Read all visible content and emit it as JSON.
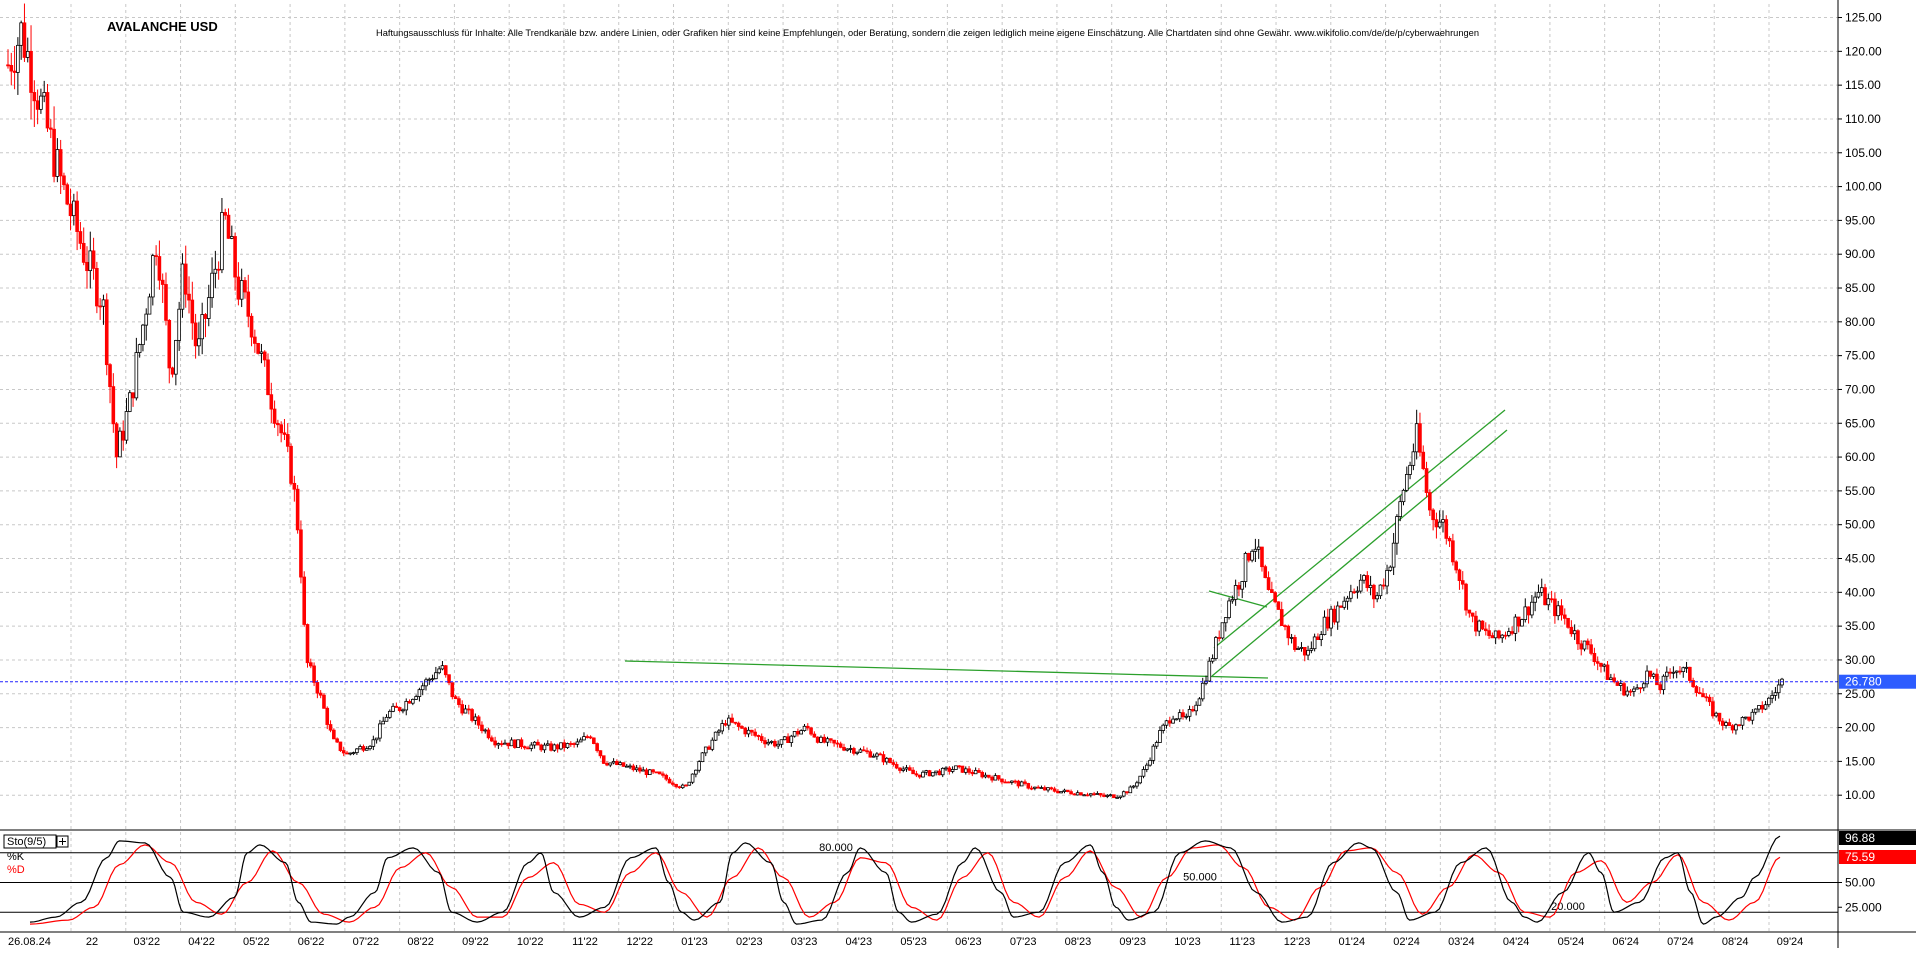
{
  "chart_title": "AVALANCHE USD",
  "disclaimer": "Haftungsausschluss für Inhalte: Alle Trendkanäle bzw. andere Linien, oder Grafiken hier sind keine Empfehlungen, oder Beratung, sondern die zeigen lediglich meine eigene Einschätzung. Alle Chartdaten sind ohne Gewähr. www.wikifolio.com/de/de/p/cyberwaehrungen",
  "date_label": "26.08.24",
  "colors": {
    "up": "#000000",
    "down": "#ff0000",
    "grid": "#c8c8c8",
    "trendline": "#2ca02c",
    "current_price_line": "#2222ff",
    "k_line": "#000000",
    "d_line": "#ff0000"
  },
  "chart_data": [
    {
      "type": "candlestick",
      "title": "AVALANCHE USD",
      "ylim": [
        5,
        127
      ],
      "y_ticks": [
        "10.00",
        "15.00",
        "20.00",
        "25.00",
        "30.00",
        "35.00",
        "40.00",
        "45.00",
        "50.00",
        "55.00",
        "60.00",
        "65.00",
        "70.00",
        "75.00",
        "80.00",
        "85.00",
        "90.00",
        "95.00",
        "100.00",
        "105.00",
        "110.00",
        "115.00",
        "120.00",
        "125.00"
      ],
      "x_ticks": [
        "22",
        "03'22",
        "04'22",
        "05'22",
        "06'22",
        "07'22",
        "08'22",
        "09'22",
        "10'22",
        "11'22",
        "12'22",
        "01'23",
        "02'23",
        "03'23",
        "04'23",
        "05'23",
        "06'23",
        "07'23",
        "08'23",
        "09'23",
        "10'23",
        "11'23",
        "12'23",
        "01'24",
        "02'24",
        "03'24",
        "04'24",
        "05'24",
        "06'24",
        "07'24",
        "08'24",
        "09'24"
      ],
      "grid": true,
      "current_price": 26.78,
      "current_price_label": "26.780",
      "price_path": [
        [
          0,
          118
        ],
        [
          1,
          123
        ],
        [
          4,
          100
        ],
        [
          6,
          88
        ],
        [
          7,
          83
        ],
        [
          8,
          60
        ],
        [
          9,
          68
        ],
        [
          10,
          80
        ],
        [
          11,
          93
        ],
        [
          12,
          72
        ],
        [
          13,
          88
        ],
        [
          14,
          75
        ],
        [
          16,
          95
        ],
        [
          17,
          85
        ],
        [
          18,
          80
        ],
        [
          19,
          72
        ],
        [
          20,
          65
        ],
        [
          21,
          57
        ],
        [
          21.5,
          48
        ],
        [
          22,
          30
        ],
        [
          23,
          25
        ],
        [
          24,
          18
        ],
        [
          25,
          16
        ],
        [
          26,
          17
        ],
        [
          27,
          18
        ],
        [
          28,
          22
        ],
        [
          29,
          23
        ],
        [
          30,
          25
        ],
        [
          31,
          27
        ],
        [
          32,
          29
        ],
        [
          33,
          24
        ],
        [
          34,
          22
        ],
        [
          36,
          18
        ],
        [
          38,
          17.5
        ],
        [
          40,
          17
        ],
        [
          42,
          17.5
        ],
        [
          43,
          19
        ],
        [
          44,
          15
        ],
        [
          46,
          14
        ],
        [
          48,
          13
        ],
        [
          49,
          12
        ],
        [
          50,
          11
        ],
        [
          51,
          15
        ],
        [
          52,
          18
        ],
        [
          53,
          21
        ],
        [
          54,
          20
        ],
        [
          55,
          19
        ],
        [
          56,
          18
        ],
        [
          57,
          17.5
        ],
        [
          58,
          19
        ],
        [
          59,
          20
        ],
        [
          60,
          18
        ],
        [
          62,
          17
        ],
        [
          64,
          16
        ],
        [
          66,
          14
        ],
        [
          67,
          13
        ],
        [
          69,
          13.5
        ],
        [
          70,
          14
        ],
        [
          72,
          13
        ],
        [
          74,
          12
        ],
        [
          76,
          11
        ],
        [
          78,
          10.5
        ],
        [
          80,
          10.2
        ],
        [
          81,
          9.8
        ],
        [
          82,
          10
        ],
        [
          83,
          11
        ],
        [
          84,
          14
        ],
        [
          85,
          19
        ],
        [
          86,
          22
        ],
        [
          87,
          21
        ],
        [
          88,
          25
        ],
        [
          89,
          31
        ],
        [
          90,
          38
        ],
        [
          91,
          42
        ],
        [
          92,
          48
        ],
        [
          93,
          40
        ],
        [
          94,
          36
        ],
        [
          95,
          32
        ],
        [
          96,
          31
        ],
        [
          97,
          35
        ],
        [
          98,
          37
        ],
        [
          99,
          40
        ],
        [
          100,
          42
        ],
        [
          101,
          39
        ],
        [
          102,
          44
        ],
        [
          103,
          55
        ],
        [
          104,
          63
        ],
        [
          104.5,
          58
        ],
        [
          105,
          52
        ],
        [
          106,
          50
        ],
        [
          107,
          44
        ],
        [
          108,
          36
        ],
        [
          109,
          34
        ],
        [
          110,
          33
        ],
        [
          111,
          35
        ],
        [
          112,
          37
        ],
        [
          113,
          40
        ],
        [
          114,
          38
        ],
        [
          115,
          36
        ],
        [
          116,
          33
        ],
        [
          117,
          31
        ],
        [
          118,
          28
        ],
        [
          119,
          26
        ],
        [
          120,
          25
        ],
        [
          121,
          28
        ],
        [
          122,
          26
        ],
        [
          123,
          29
        ],
        [
          124,
          28
        ],
        [
          125,
          25
        ],
        [
          126,
          22
        ],
        [
          127,
          20
        ],
        [
          128,
          21
        ],
        [
          129,
          22
        ],
        [
          130,
          24
        ],
        [
          131,
          26.78
        ]
      ],
      "trendlines": [
        {
          "from": [
            1209,
            591
          ],
          "to": [
            1267,
            607
          ]
        },
        {
          "from": [
            625,
            661
          ],
          "to": [
            1268,
            678
          ]
        },
        {
          "from": [
            1212,
            676
          ],
          "to": [
            1507,
            430
          ]
        },
        {
          "from": [
            1214,
            648
          ],
          "to": [
            1505,
            410
          ]
        }
      ]
    },
    {
      "type": "line",
      "title": "Sto(9/5)",
      "ylim": [
        0,
        100
      ],
      "y_ticks": [
        "25.000",
        "50.00"
      ],
      "levels": [
        {
          "value": 80,
          "label": "80.000"
        },
        {
          "value": 50,
          "label": "50.000"
        },
        {
          "value": 20,
          "label": "20.000"
        }
      ],
      "series": [
        {
          "name": "%K",
          "last_value_label": "96.88"
        },
        {
          "name": "%D",
          "last_value_label": "75.59"
        }
      ],
      "k_path": [
        [
          0,
          10
        ],
        [
          2,
          15
        ],
        [
          4,
          30
        ],
        [
          6,
          75
        ],
        [
          7,
          92
        ],
        [
          9,
          90
        ],
        [
          11,
          55
        ],
        [
          12,
          20
        ],
        [
          14,
          15
        ],
        [
          16,
          35
        ],
        [
          17,
          80
        ],
        [
          18,
          88
        ],
        [
          20,
          70
        ],
        [
          21,
          30
        ],
        [
          22,
          10
        ],
        [
          24,
          8
        ],
        [
          25,
          15
        ],
        [
          27,
          40
        ],
        [
          28,
          75
        ],
        [
          30,
          85
        ],
        [
          32,
          60
        ],
        [
          33,
          20
        ],
        [
          35,
          10
        ],
        [
          37,
          20
        ],
        [
          39,
          70
        ],
        [
          40,
          80
        ],
        [
          41,
          40
        ],
        [
          43,
          15
        ],
        [
          45,
          25
        ],
        [
          47,
          75
        ],
        [
          49,
          85
        ],
        [
          50,
          50
        ],
        [
          51,
          20
        ],
        [
          52,
          12
        ],
        [
          54,
          30
        ],
        [
          55,
          80
        ],
        [
          56,
          90
        ],
        [
          58,
          70
        ],
        [
          59,
          30
        ],
        [
          60,
          8
        ],
        [
          62,
          12
        ],
        [
          64,
          60
        ],
        [
          65,
          85
        ],
        [
          67,
          60
        ],
        [
          68,
          20
        ],
        [
          69,
          10
        ],
        [
          71,
          18
        ],
        [
          73,
          70
        ],
        [
          74,
          85
        ],
        [
          76,
          40
        ],
        [
          77,
          15
        ],
        [
          79,
          20
        ],
        [
          81,
          70
        ],
        [
          83,
          88
        ],
        [
          84,
          60
        ],
        [
          85,
          25
        ],
        [
          86,
          12
        ],
        [
          88,
          20
        ],
        [
          90,
          80
        ],
        [
          92,
          92
        ],
        [
          94,
          85
        ],
        [
          96,
          40
        ],
        [
          98,
          10
        ],
        [
          100,
          15
        ],
        [
          102,
          70
        ],
        [
          104,
          90
        ],
        [
          105,
          85
        ],
        [
          107,
          40
        ],
        [
          108,
          12
        ],
        [
          110,
          20
        ],
        [
          112,
          70
        ],
        [
          114,
          85
        ],
        [
          116,
          30
        ],
        [
          117,
          15
        ],
        [
          118,
          10
        ],
        [
          120,
          40
        ],
        [
          122,
          80
        ],
        [
          123,
          60
        ],
        [
          124,
          20
        ],
        [
          126,
          30
        ],
        [
          128,
          75
        ],
        [
          129,
          80
        ],
        [
          130,
          40
        ],
        [
          131,
          8
        ],
        [
          132,
          15
        ],
        [
          134,
          35
        ],
        [
          135,
          55
        ],
        [
          137,
          96.88
        ]
      ],
      "d_path": [
        [
          0,
          8
        ],
        [
          3,
          12
        ],
        [
          5,
          25
        ],
        [
          7,
          68
        ],
        [
          9,
          88
        ],
        [
          11,
          70
        ],
        [
          13,
          30
        ],
        [
          15,
          18
        ],
        [
          17,
          50
        ],
        [
          19,
          82
        ],
        [
          21,
          50
        ],
        [
          23,
          18
        ],
        [
          25,
          10
        ],
        [
          27,
          25
        ],
        [
          29,
          65
        ],
        [
          31,
          80
        ],
        [
          33,
          45
        ],
        [
          35,
          15
        ],
        [
          37,
          15
        ],
        [
          39,
          55
        ],
        [
          41,
          70
        ],
        [
          43,
          28
        ],
        [
          45,
          20
        ],
        [
          47,
          60
        ],
        [
          49,
          80
        ],
        [
          51,
          40
        ],
        [
          53,
          15
        ],
        [
          55,
          55
        ],
        [
          57,
          85
        ],
        [
          59,
          55
        ],
        [
          61,
          15
        ],
        [
          63,
          30
        ],
        [
          65,
          75
        ],
        [
          67,
          70
        ],
        [
          69,
          25
        ],
        [
          71,
          12
        ],
        [
          73,
          55
        ],
        [
          75,
          80
        ],
        [
          77,
          30
        ],
        [
          79,
          15
        ],
        [
          81,
          55
        ],
        [
          83,
          82
        ],
        [
          85,
          45
        ],
        [
          87,
          15
        ],
        [
          89,
          55
        ],
        [
          91,
          85
        ],
        [
          93,
          88
        ],
        [
          95,
          65
        ],
        [
          97,
          25
        ],
        [
          99,
          12
        ],
        [
          101,
          45
        ],
        [
          103,
          82
        ],
        [
          105,
          85
        ],
        [
          107,
          60
        ],
        [
          109,
          18
        ],
        [
          111,
          45
        ],
        [
          113,
          78
        ],
        [
          115,
          60
        ],
        [
          117,
          20
        ],
        [
          119,
          15
        ],
        [
          121,
          60
        ],
        [
          123,
          72
        ],
        [
          125,
          30
        ],
        [
          127,
          50
        ],
        [
          129,
          78
        ],
        [
          131,
          30
        ],
        [
          133,
          12
        ],
        [
          135,
          30
        ],
        [
          137,
          75.59
        ]
      ]
    }
  ]
}
